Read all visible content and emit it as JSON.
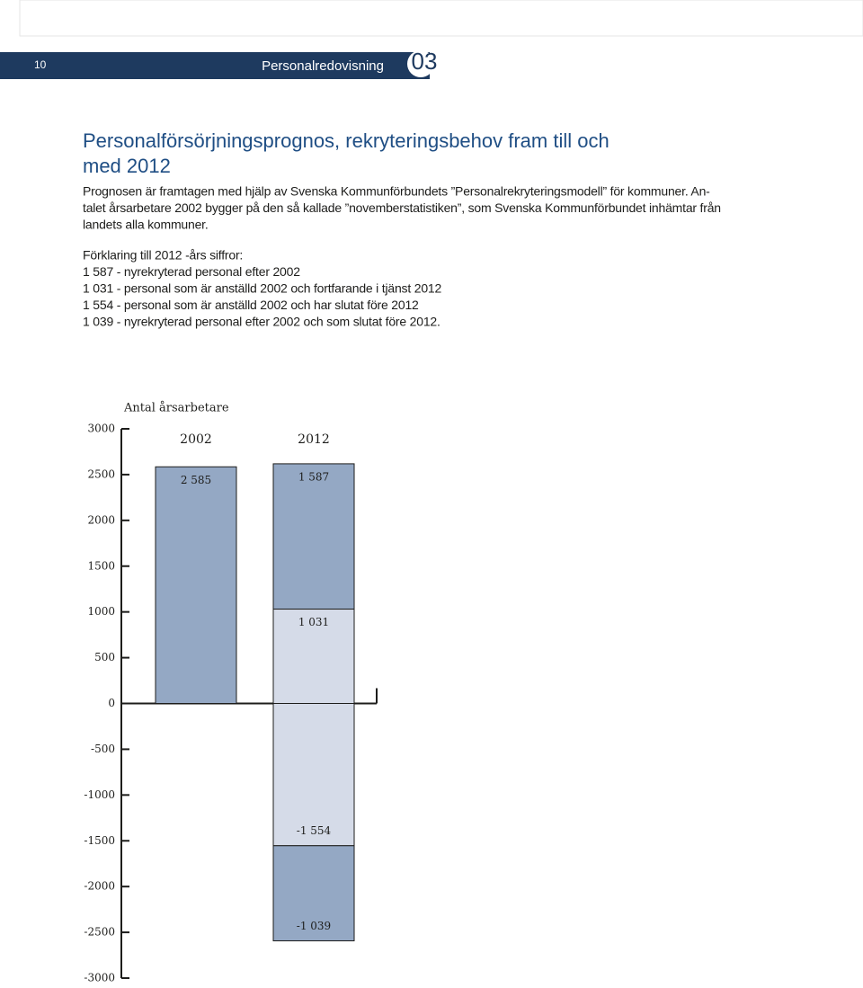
{
  "header": {
    "page_number": "10",
    "section": "Personalredovisning",
    "chapter": "03"
  },
  "title_lines": [
    "Personalförsörjningsprognos, rekryteringsbehov fram till och",
    "med 2012"
  ],
  "intro_lines": [
    "Prognosen är framtagen med hjälp av Svenska Kommunförbundets ”Personalrekryteringsmodell” för kommuner. An-",
    "talet årsarbetare 2002 bygger på den så kallade ”novemberstatistiken”, som Svenska Kommunförbundet inhämtar från",
    "landets alla kommuner."
  ],
  "explanation_lines": [
    "Förklaring till 2012 -års siffror:",
    "1 587 - nyrekryterad personal efter 2002",
    "1 031 - personal som är anställd 2002 och fortfarande  i tjänst 2012",
    "1 554 - personal som är anställd 2002 och har slutat före 2012",
    "1 039 - nyrekryterad personal efter 2002 och som  slutat före 2012."
  ],
  "chart_data": {
    "type": "bar",
    "stacked": true,
    "y_label": "Antal årsarbetare",
    "categories": [
      "2002",
      "2012"
    ],
    "series": [
      {
        "color": "#d5dbe8",
        "values": [
          null,
          1031
        ],
        "value_labels": [
          null,
          "1 031"
        ]
      },
      {
        "color": "#94a8c4",
        "values": [
          2585,
          1587
        ],
        "value_labels": [
          "2 585",
          "1 587"
        ]
      },
      {
        "color": "#d5dbe8",
        "values": [
          null,
          -1554
        ],
        "value_labels": [
          null,
          "-1 554"
        ]
      },
      {
        "color": "#94a8c4",
        "values": [
          null,
          -1039
        ],
        "value_labels": [
          null,
          "-1 039"
        ]
      }
    ],
    "ylim": [
      -3000,
      3000
    ],
    "yticks": [
      3000,
      2500,
      2000,
      1500,
      1000,
      500,
      0,
      -500,
      -1000,
      -1500,
      -2000,
      -2500,
      -3000
    ]
  }
}
